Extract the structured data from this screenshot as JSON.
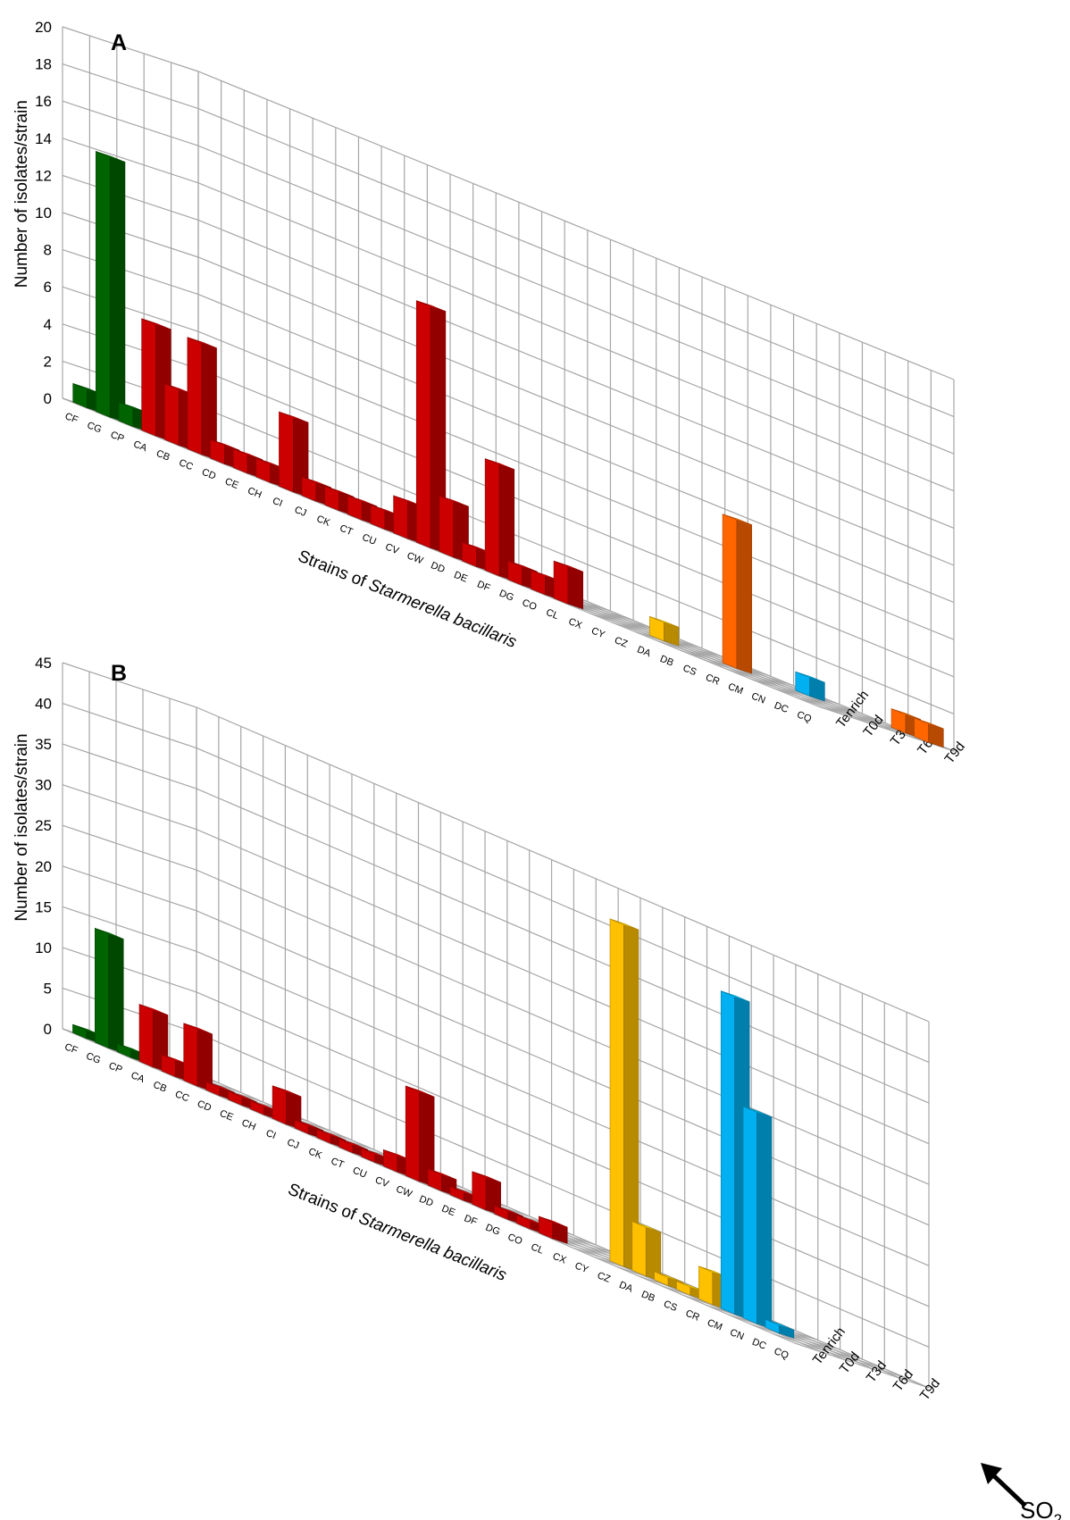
{
  "colors": {
    "green": "#006400",
    "red": "#cc0000",
    "yellow": "#ffc000",
    "orange": "#ff6600",
    "blue": "#00b0f0"
  },
  "chart_data": [
    {
      "type": "bar",
      "panel": "A",
      "ylabel": "Number of isolates/strain",
      "xlabel_prefix": "Strains of ",
      "xlabel_italic": "Starmerella bacillaris",
      "ylim": [
        0,
        20
      ],
      "y_ticks": [
        "0",
        "2",
        "4",
        "6",
        "8",
        "10",
        "12",
        "14",
        "16",
        "18",
        "20"
      ],
      "categories": [
        "CF",
        "CG",
        "CP",
        "CA",
        "CB",
        "CC",
        "CD",
        "CE",
        "CH",
        "CI",
        "CJ",
        "CK",
        "CT",
        "CU",
        "CV",
        "CW",
        "DD",
        "DE",
        "DF",
        "DG",
        "CO",
        "CL",
        "CX",
        "CY",
        "CZ",
        "DA",
        "DB",
        "CS",
        "CR",
        "CM",
        "CN",
        "DC",
        "CQ"
      ],
      "series": [
        {
          "name": "Tenrich",
          "values": [
            1,
            14,
            1,
            6,
            3,
            6,
            1,
            1,
            1,
            4,
            1,
            1,
            1,
            1,
            2,
            13,
            3,
            1,
            6,
            1,
            1,
            2,
            0,
            0,
            0,
            0,
            0,
            0,
            0,
            0,
            0,
            0,
            0
          ]
        },
        {
          "name": "T0d",
          "values": [
            0,
            0,
            0,
            0,
            0,
            0,
            0,
            0,
            0,
            0,
            0,
            0,
            0,
            0,
            0,
            0,
            0,
            0,
            0,
            0,
            0,
            0,
            0,
            0,
            1,
            0,
            0,
            0,
            0,
            0,
            0,
            0,
            0
          ]
        },
        {
          "name": "T3d",
          "values": [
            0,
            0,
            0,
            0,
            0,
            0,
            0,
            0,
            0,
            0,
            0,
            0,
            0,
            0,
            0,
            0,
            0,
            0,
            0,
            0,
            0,
            0,
            0,
            0,
            0,
            0,
            8,
            0,
            0,
            0,
            0,
            0,
            0
          ]
        },
        {
          "name": "T6d",
          "values": [
            0,
            0,
            0,
            0,
            0,
            0,
            0,
            0,
            0,
            0,
            0,
            0,
            0,
            0,
            0,
            0,
            0,
            0,
            0,
            0,
            0,
            0,
            0,
            0,
            0,
            0,
            0,
            0,
            1,
            0,
            0,
            0,
            0
          ]
        },
        {
          "name": "T9d",
          "values": [
            0,
            0,
            0,
            0,
            0,
            0,
            0,
            0,
            0,
            0,
            0,
            0,
            0,
            0,
            0,
            0,
            0,
            0,
            0,
            0,
            0,
            0,
            0,
            0,
            0,
            0,
            0,
            0,
            0,
            0,
            0,
            1,
            1
          ]
        }
      ],
      "bar_colors": [
        "green",
        "green",
        "green",
        "red",
        "red",
        "red",
        "red",
        "red",
        "red",
        "red",
        "red",
        "red",
        "red",
        "red",
        "red",
        "red",
        "red",
        "red",
        "red",
        "red",
        "red",
        "red",
        "yellow",
        "yellow",
        "yellow",
        "yellow",
        "orange",
        "orange",
        "blue",
        "blue",
        "blue",
        "orange",
        "orange"
      ]
    },
    {
      "type": "bar",
      "panel": "B",
      "ylabel": "Number of isolates/strain",
      "xlabel_prefix": "Strains of ",
      "xlabel_italic": "Starmerella bacillaris",
      "ylim": [
        0,
        45
      ],
      "y_ticks": [
        "0",
        "5",
        "10",
        "15",
        "20",
        "25",
        "30",
        "35",
        "40",
        "45"
      ],
      "categories": [
        "CF",
        "CG",
        "CP",
        "CA",
        "CB",
        "CC",
        "CD",
        "CE",
        "CH",
        "CI",
        "CJ",
        "CK",
        "CT",
        "CU",
        "CV",
        "CW",
        "DD",
        "DE",
        "DF",
        "DG",
        "CO",
        "CL",
        "CX",
        "CY",
        "CZ",
        "DA",
        "DB",
        "CS",
        "CR",
        "CM",
        "CN",
        "DC",
        "CQ"
      ],
      "series": [
        {
          "name": "Tenrich",
          "values": [
            1,
            14,
            1,
            7,
            2,
            7,
            1,
            1,
            1,
            4,
            1,
            1,
            1,
            1,
            2,
            11,
            2,
            1,
            4,
            1,
            1,
            2,
            0,
            0,
            0,
            0,
            0,
            0,
            0,
            0,
            0,
            0,
            0
          ]
        },
        {
          "name": "T0d",
          "values": [
            0,
            0,
            0,
            0,
            0,
            0,
            0,
            0,
            0,
            0,
            0,
            0,
            0,
            0,
            0,
            0,
            0,
            0,
            0,
            0,
            0,
            0,
            0,
            42,
            6,
            1,
            1,
            4,
            0,
            0,
            0,
            0,
            0
          ]
        },
        {
          "name": "T3d",
          "values": [
            0,
            0,
            0,
            0,
            0,
            0,
            0,
            0,
            0,
            0,
            0,
            0,
            0,
            0,
            0,
            0,
            0,
            0,
            0,
            0,
            0,
            0,
            0,
            0,
            0,
            0,
            0,
            0,
            0,
            0,
            0,
            0,
            0
          ]
        },
        {
          "name": "T6d",
          "values": [
            0,
            0,
            0,
            0,
            0,
            0,
            0,
            0,
            0,
            0,
            0,
            0,
            0,
            0,
            0,
            0,
            0,
            0,
            0,
            0,
            0,
            0,
            0,
            0,
            0,
            0,
            0,
            0,
            0,
            0,
            0,
            0,
            0
          ]
        },
        {
          "name": "T9d",
          "values": [
            0,
            0,
            0,
            0,
            0,
            0,
            0,
            0,
            0,
            0,
            0,
            0,
            0,
            0,
            0,
            0,
            0,
            0,
            0,
            0,
            0,
            0,
            0,
            0,
            0,
            0,
            0,
            0,
            0,
            0,
            0,
            0,
            0
          ]
        }
      ],
      "bar_colors": [
        "green",
        "green",
        "green",
        "red",
        "red",
        "red",
        "red",
        "red",
        "red",
        "red",
        "red",
        "red",
        "red",
        "red",
        "red",
        "red",
        "red",
        "red",
        "red",
        "red",
        "red",
        "red",
        "yellow",
        "yellow",
        "yellow",
        "yellow",
        "yellow",
        "yellow",
        "blue",
        "blue",
        "blue",
        "blue",
        "blue"
      ],
      "extra_series_note": "",
      "extra_values": {
        "CR": 39,
        "CM": 26,
        "CN": 1
      },
      "arrow_label": "SO",
      "arrow_label_sub": "2"
    }
  ],
  "depth_labels": [
    "Tenrich",
    "T0d",
    "T3d",
    "T6d",
    "T9d"
  ]
}
